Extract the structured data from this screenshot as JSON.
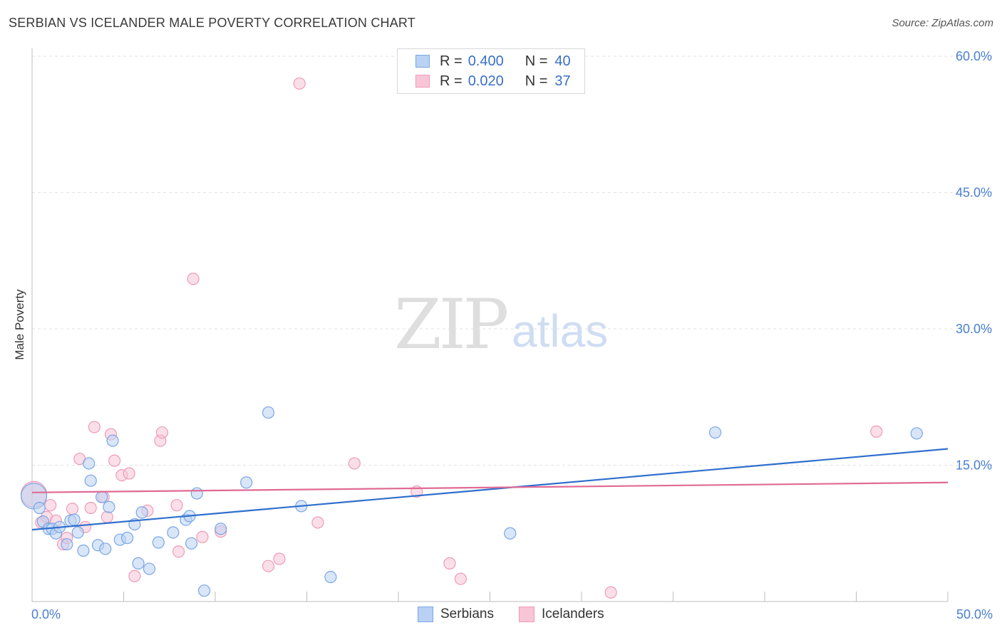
{
  "title": "SERBIAN VS ICELANDER MALE POVERTY CORRELATION CHART",
  "source": "Source: ZipAtlas.com",
  "watermark": {
    "zip": "ZIP",
    "atlas": "atlas"
  },
  "legend": {
    "rows": [
      {
        "r_label": "R =",
        "r_value": "0.400",
        "n_label": "N =",
        "n_value": "40"
      },
      {
        "r_label": "R =",
        "r_value": "0.020",
        "n_label": "N =",
        "n_value": "37"
      }
    ]
  },
  "colors": {
    "serbians_fill": "#b9d1f3",
    "serbians_stroke": "#7aa6e6",
    "serbians_line": "#2f6fcd",
    "icelanders_fill": "#f8c5d6",
    "icelanders_stroke": "#ee9bb7",
    "icelanders_line": "#e06a94"
  },
  "chart_data": {
    "type": "scatter",
    "title": "SERBIAN VS ICELANDER MALE POVERTY CORRELATION CHART",
    "xlabel": "",
    "ylabel": "Male Poverty",
    "xlim": [
      0,
      50
    ],
    "ylim": [
      0,
      60
    ],
    "y_ticks": [
      15,
      30,
      45,
      60
    ],
    "y_tick_labels": [
      "15.0%",
      "30.0%",
      "45.0%",
      "60.0%"
    ],
    "x_tick_labels": [
      "0.0%",
      "50.0%"
    ],
    "grid": true,
    "series": [
      {
        "name": "Serbians",
        "trend": {
          "x": [
            0,
            50
          ],
          "y": [
            7.9,
            16.8
          ]
        },
        "points": [
          {
            "x": 0.1,
            "y": 11.6,
            "big": true
          },
          {
            "x": 0.4,
            "y": 10.3
          },
          {
            "x": 0.6,
            "y": 8.8
          },
          {
            "x": 0.9,
            "y": 8.0
          },
          {
            "x": 1.1,
            "y": 8.0
          },
          {
            "x": 1.3,
            "y": 7.5
          },
          {
            "x": 1.5,
            "y": 8.2
          },
          {
            "x": 1.9,
            "y": 6.3
          },
          {
            "x": 2.1,
            "y": 8.9
          },
          {
            "x": 2.3,
            "y": 9.0
          },
          {
            "x": 2.5,
            "y": 7.6
          },
          {
            "x": 2.8,
            "y": 5.6
          },
          {
            "x": 3.1,
            "y": 15.2
          },
          {
            "x": 3.2,
            "y": 13.3
          },
          {
            "x": 3.6,
            "y": 6.2
          },
          {
            "x": 3.8,
            "y": 11.5
          },
          {
            "x": 4.0,
            "y": 5.8
          },
          {
            "x": 4.2,
            "y": 10.4
          },
          {
            "x": 4.4,
            "y": 17.7
          },
          {
            "x": 4.8,
            "y": 6.8
          },
          {
            "x": 5.2,
            "y": 7.0
          },
          {
            "x": 5.6,
            "y": 8.5
          },
          {
            "x": 5.8,
            "y": 4.2
          },
          {
            "x": 6.0,
            "y": 9.8
          },
          {
            "x": 6.4,
            "y": 3.6
          },
          {
            "x": 6.9,
            "y": 6.5
          },
          {
            "x": 7.7,
            "y": 7.6
          },
          {
            "x": 8.4,
            "y": 9.0
          },
          {
            "x": 8.6,
            "y": 9.4
          },
          {
            "x": 8.7,
            "y": 6.4
          },
          {
            "x": 9.0,
            "y": 11.9
          },
          {
            "x": 9.4,
            "y": 1.2
          },
          {
            "x": 10.3,
            "y": 8.0
          },
          {
            "x": 11.7,
            "y": 13.1
          },
          {
            "x": 12.9,
            "y": 20.8
          },
          {
            "x": 14.7,
            "y": 10.5
          },
          {
            "x": 16.3,
            "y": 2.7
          },
          {
            "x": 26.1,
            "y": 7.5
          },
          {
            "x": 37.3,
            "y": 18.6
          },
          {
            "x": 48.3,
            "y": 18.5
          }
        ]
      },
      {
        "name": "Icelanders",
        "trend": {
          "x": [
            0,
            50
          ],
          "y": [
            12.0,
            13.1
          ]
        },
        "points": [
          {
            "x": 0.1,
            "y": 11.8,
            "big": true
          },
          {
            "x": 0.5,
            "y": 8.7
          },
          {
            "x": 0.8,
            "y": 9.3
          },
          {
            "x": 1.0,
            "y": 10.6
          },
          {
            "x": 1.3,
            "y": 8.9
          },
          {
            "x": 1.7,
            "y": 6.3
          },
          {
            "x": 1.9,
            "y": 7.0
          },
          {
            "x": 2.2,
            "y": 10.2
          },
          {
            "x": 2.6,
            "y": 15.7
          },
          {
            "x": 2.9,
            "y": 8.2
          },
          {
            "x": 3.2,
            "y": 10.3
          },
          {
            "x": 3.4,
            "y": 19.2
          },
          {
            "x": 3.9,
            "y": 11.5
          },
          {
            "x": 4.1,
            "y": 9.3
          },
          {
            "x": 4.3,
            "y": 18.4
          },
          {
            "x": 4.5,
            "y": 15.5
          },
          {
            "x": 4.9,
            "y": 13.9
          },
          {
            "x": 5.3,
            "y": 14.1
          },
          {
            "x": 5.6,
            "y": 2.8
          },
          {
            "x": 6.3,
            "y": 10.0
          },
          {
            "x": 7.0,
            "y": 17.7
          },
          {
            "x": 7.1,
            "y": 18.6
          },
          {
            "x": 7.9,
            "y": 10.6
          },
          {
            "x": 8.0,
            "y": 5.5
          },
          {
            "x": 8.8,
            "y": 35.5
          },
          {
            "x": 9.3,
            "y": 7.1
          },
          {
            "x": 10.3,
            "y": 7.7
          },
          {
            "x": 12.9,
            "y": 3.9
          },
          {
            "x": 13.5,
            "y": 4.7
          },
          {
            "x": 14.6,
            "y": 57.0
          },
          {
            "x": 15.6,
            "y": 8.7
          },
          {
            "x": 17.6,
            "y": 15.2
          },
          {
            "x": 21.0,
            "y": 12.1
          },
          {
            "x": 22.8,
            "y": 4.2
          },
          {
            "x": 23.4,
            "y": 2.5
          },
          {
            "x": 31.6,
            "y": 1.0
          },
          {
            "x": 46.1,
            "y": 18.7
          }
        ]
      }
    ]
  }
}
